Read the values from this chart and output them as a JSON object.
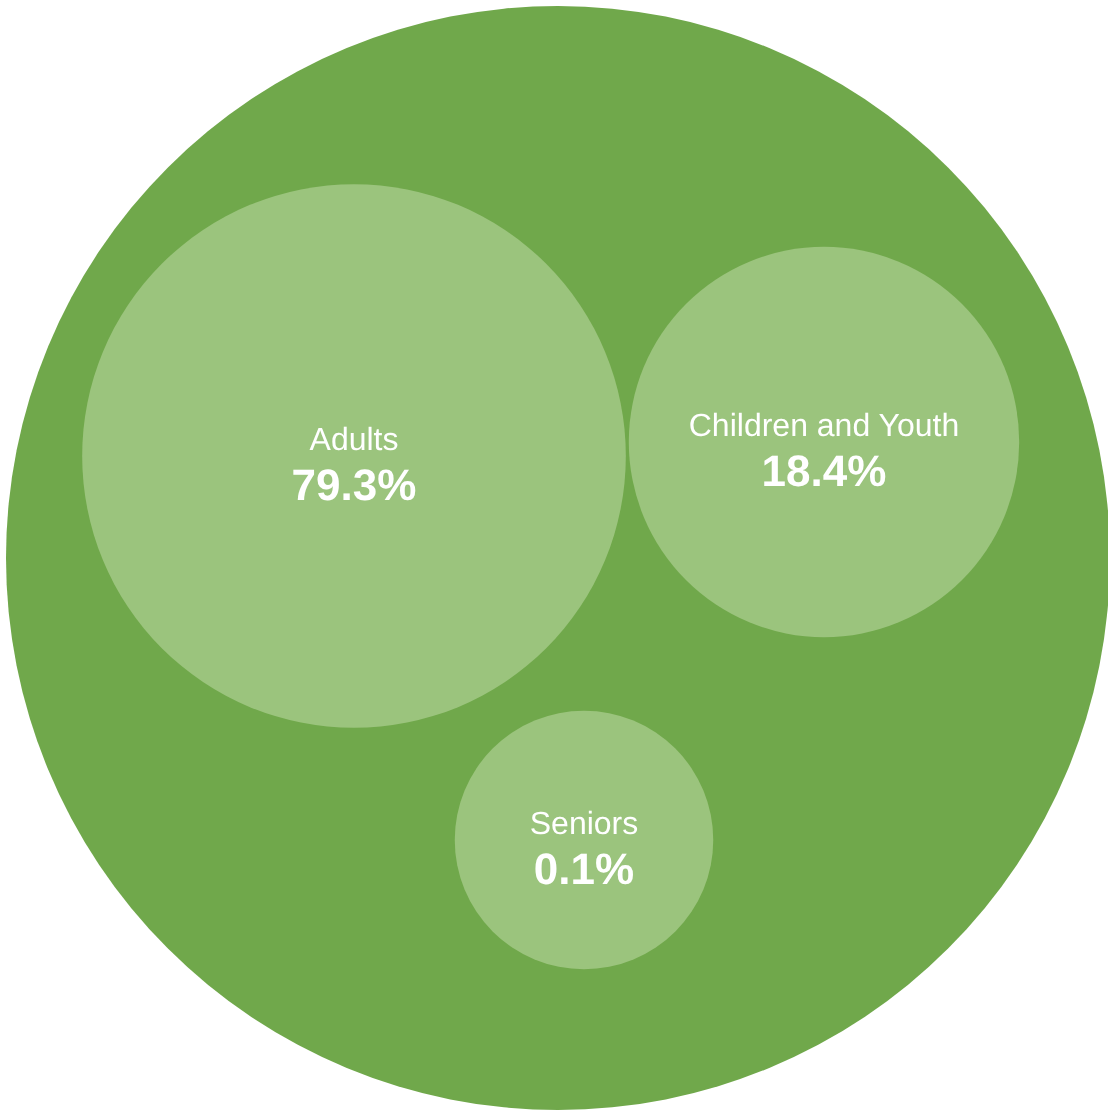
{
  "chart_data": {
    "type": "other",
    "categories": [
      "Adults",
      "Children and Youth",
      "Seniors"
    ],
    "values": [
      79.3,
      18.4,
      0.1
    ],
    "value_labels": [
      "79.3%",
      "18.4%",
      "0.1%"
    ],
    "colors": [
      "#9bc47d",
      "#9bc47d",
      "#9bc47d"
    ]
  }
}
